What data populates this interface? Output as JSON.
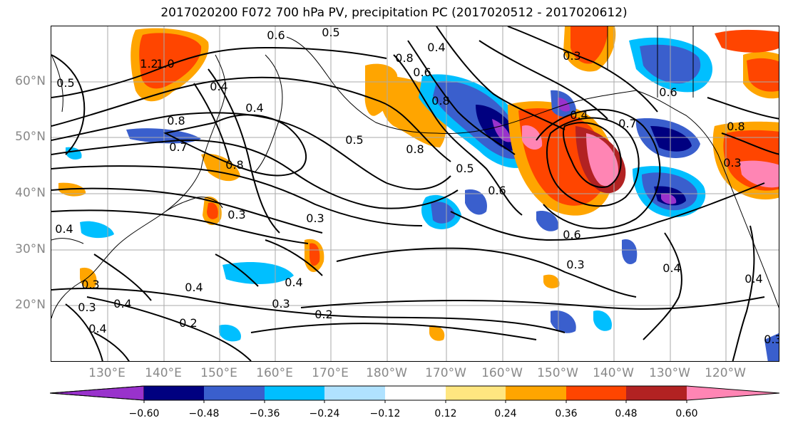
{
  "title": "2017020200 F072 700 hPa PV, precipitation PC (2017020512 - 2017020612)",
  "lat_labels": [
    "60°N",
    "50°N",
    "40°N",
    "30°N",
    "20°N"
  ],
  "lon_labels": [
    "130°E",
    "140°E",
    "150°E",
    "160°E",
    "170°E",
    "180°W",
    "170°W",
    "160°W",
    "150°W",
    "140°W",
    "130°W",
    "120°W"
  ],
  "colorbar": {
    "ticks": [
      "−0.60",
      "−0.48",
      "−0.36",
      "−0.24",
      "−0.12",
      "0.12",
      "0.24",
      "0.36",
      "0.48",
      "0.60"
    ],
    "colors": [
      "#9932cc",
      "#000080",
      "#3a5fcd",
      "#00bfff",
      "#b0e2ff",
      "#ffffff",
      "#ffe680",
      "#ffa500",
      "#ff4500",
      "#b22222",
      "#ff85b4"
    ]
  },
  "contour_labels": [
    "0.6",
    "0.5",
    "0.8",
    "0.3",
    "1.0",
    "1.2",
    "0.5",
    "0.4",
    "0.6",
    "0.4",
    "0.8",
    "0.7",
    "0.8",
    "0.5",
    "0.8",
    "0.6",
    "0.8",
    "0.7",
    "0.4",
    "0.5",
    "0.8",
    "0.3",
    "0.6",
    "0.4",
    "0.3",
    "0.3",
    "0.3",
    "0.4",
    "0.4",
    "0.3",
    "0.2",
    "0.4",
    "0.2",
    "0.3",
    "0.4",
    "0.3",
    "0.4",
    "0.6",
    "0.3",
    "0.4",
    "0.4"
  ]
}
